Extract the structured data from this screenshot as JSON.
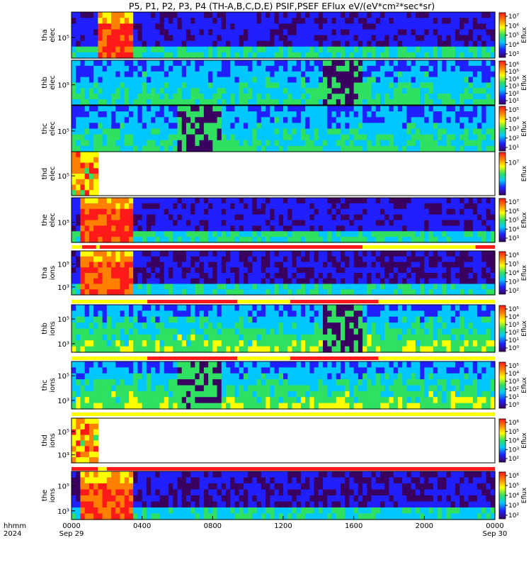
{
  "chart_data": {
    "type": "heatmap",
    "title": "P5, P1, P2, P3, P4 (TH-A,B,C,D,E) PSIF,PSEF EFlux eV/(eV*cm²*sec*sr)",
    "x_axis": {
      "row_labels": [
        "hhmm",
        "2024"
      ],
      "ticks": [
        {
          "hour": 0,
          "label": "0000",
          "date": "Sep 29"
        },
        {
          "hour": 4,
          "label": "0400",
          "date": ""
        },
        {
          "hour": 8,
          "label": "0800",
          "date": ""
        },
        {
          "hour": 12,
          "label": "1200",
          "date": ""
        },
        {
          "hour": 16,
          "label": "1600",
          "date": ""
        },
        {
          "hour": 20,
          "label": "2000",
          "date": ""
        },
        {
          "hour": 24,
          "label": "0000",
          "date": "Sep 30"
        }
      ],
      "range_hours": [
        0,
        24
      ]
    },
    "colorscale": [
      "#3a0060",
      "#2020ff",
      "#00c8ff",
      "#30e060",
      "#ffff00",
      "#ff8000",
      "#ff1a1a"
    ],
    "panels": [
      {
        "probe": "tha",
        "species": "elec",
        "ylabel": [
          "tha",
          "elec"
        ],
        "yticks": [
          "10⁵"
        ],
        "cbar_label": "Eflux",
        "cbar_ticks": [
          "10⁷",
          "10⁶",
          "10⁵",
          "10⁴",
          "10³"
        ],
        "data_span_hours": [
          0.0,
          24.0
        ],
        "burst_hours": [
          1.5,
          3.5
        ],
        "gaps": [],
        "state_bar": []
      },
      {
        "probe": "thb",
        "species": "elec",
        "ylabel": [
          "thb",
          "elec"
        ],
        "yticks": [
          "10⁵"
        ],
        "cbar_label": "Eflux",
        "cbar_ticks": [
          "10⁶",
          "10⁵",
          "10⁴",
          "10³",
          "10²",
          "10¹"
        ],
        "data_span_hours": [
          0.0,
          24.0
        ],
        "burst_hours": [],
        "gaps": [
          [
            14.2,
            16.5
          ]
        ],
        "state_bar": []
      },
      {
        "probe": "thc",
        "species": "elec",
        "ylabel": [
          "thc",
          "elec"
        ],
        "yticks": [
          "10⁵"
        ],
        "cbar_label": "Eflux",
        "cbar_ticks": [
          "10⁵",
          "10⁴",
          "10³",
          "10²",
          "10¹"
        ],
        "data_span_hours": [
          0.0,
          24.0
        ],
        "burst_hours": [],
        "gaps": [
          [
            6.0,
            8.4
          ]
        ],
        "state_bar": []
      },
      {
        "probe": "thd",
        "species": "elec",
        "ylabel": [
          "thd",
          "elec"
        ],
        "yticks": [
          "10⁵"
        ],
        "cbar_label": "Eflux",
        "cbar_ticks": [
          "10⁷"
        ],
        "data_span_hours": [
          0.0,
          1.6
        ],
        "burst_hours": [],
        "gaps": [],
        "state_bar": []
      },
      {
        "probe": "the",
        "species": "elec",
        "ylabel": [
          "the",
          "elec"
        ],
        "yticks": [
          "10⁵"
        ],
        "cbar_label": "Eflux",
        "cbar_ticks": [
          "10⁷",
          "10⁶",
          "10⁵",
          "10⁴",
          "10³"
        ],
        "data_span_hours": [
          0.0,
          24.0
        ],
        "burst_hours": [
          0.5,
          3.5
        ],
        "gaps": [],
        "state_bar": [
          [
            "yellow",
            0.0,
            0.6
          ],
          [
            "red",
            0.6,
            1.4
          ],
          [
            "yellow",
            1.4,
            1.6
          ],
          [
            "red",
            1.6,
            16.5
          ],
          [
            "yellow",
            16.5,
            22.9
          ],
          [
            "red",
            22.9,
            24.0
          ]
        ]
      },
      {
        "probe": "tha",
        "species": "ions",
        "ylabel": [
          "tha",
          "ions"
        ],
        "yticks": [
          "10⁵",
          "10³"
        ],
        "cbar_label": "Eflux",
        "cbar_ticks": [
          "10⁶",
          "10⁵",
          "10⁴",
          "10³",
          "10²"
        ],
        "data_span_hours": [
          0.0,
          24.0
        ],
        "burst_hours": [
          0.5,
          3.5
        ],
        "gaps": [],
        "state_bar": [
          [
            "yellow",
            0.0,
            4.3
          ],
          [
            "red",
            4.3,
            9.4
          ],
          [
            "yellow",
            9.4,
            12.4
          ],
          [
            "red",
            12.4,
            17.4
          ],
          [
            "yellow",
            17.4,
            24.0
          ]
        ]
      },
      {
        "probe": "thb",
        "species": "ions",
        "ylabel": [
          "thb",
          "ions"
        ],
        "yticks": [
          "10⁵",
          "10³"
        ],
        "cbar_label": "Eflux",
        "cbar_ticks": [
          "10⁵",
          "10⁴",
          "10³",
          "10²",
          "10¹",
          "10⁰"
        ],
        "data_span_hours": [
          0.0,
          24.0
        ],
        "burst_hours": [],
        "gaps": [
          [
            14.2,
            16.5
          ]
        ],
        "state_bar": [
          [
            "yellow",
            0.0,
            4.3
          ],
          [
            "red",
            4.3,
            9.4
          ],
          [
            "yellow",
            9.4,
            12.4
          ],
          [
            "red",
            12.4,
            17.4
          ],
          [
            "yellow",
            17.4,
            24.0
          ]
        ]
      },
      {
        "probe": "thc",
        "species": "ions",
        "ylabel": [
          "thc",
          "ions"
        ],
        "yticks": [
          "10⁵",
          "10³"
        ],
        "cbar_label": "Eflux",
        "cbar_ticks": [
          "10⁵",
          "10⁴",
          "10³",
          "10²",
          "10¹",
          "10⁰"
        ],
        "data_span_hours": [
          0.0,
          24.0
        ],
        "burst_hours": [],
        "gaps": [
          [
            6.0,
            8.4
          ]
        ],
        "state_bar": [
          [
            "yellow",
            0.0,
            24.0
          ]
        ]
      },
      {
        "probe": "thd",
        "species": "ions",
        "ylabel": [
          "thd",
          "ions"
        ],
        "yticks": [
          "10⁵",
          "10³"
        ],
        "cbar_label": "Eflux",
        "cbar_ticks": [
          "10⁶",
          "10⁵",
          "10⁴",
          "10³",
          "10²"
        ],
        "data_span_hours": [
          0.0,
          1.6
        ],
        "burst_hours": [],
        "gaps": [],
        "state_bar": [
          [
            "red",
            0.0,
            1.5
          ],
          [
            "yellow",
            1.5,
            2.0
          ],
          [
            "red",
            2.0,
            24.0
          ]
        ]
      },
      {
        "probe": "the",
        "species": "ions",
        "ylabel": [
          "the",
          "ions"
        ],
        "yticks": [
          "10⁵",
          "10³"
        ],
        "cbar_label": "Eflux",
        "cbar_ticks": [
          "10⁶",
          "10⁵",
          "10⁴",
          "10³",
          "10²"
        ],
        "data_span_hours": [
          0.0,
          24.0
        ],
        "burst_hours": [
          0.5,
          3.5
        ],
        "gaps": [],
        "state_bar": []
      }
    ]
  }
}
